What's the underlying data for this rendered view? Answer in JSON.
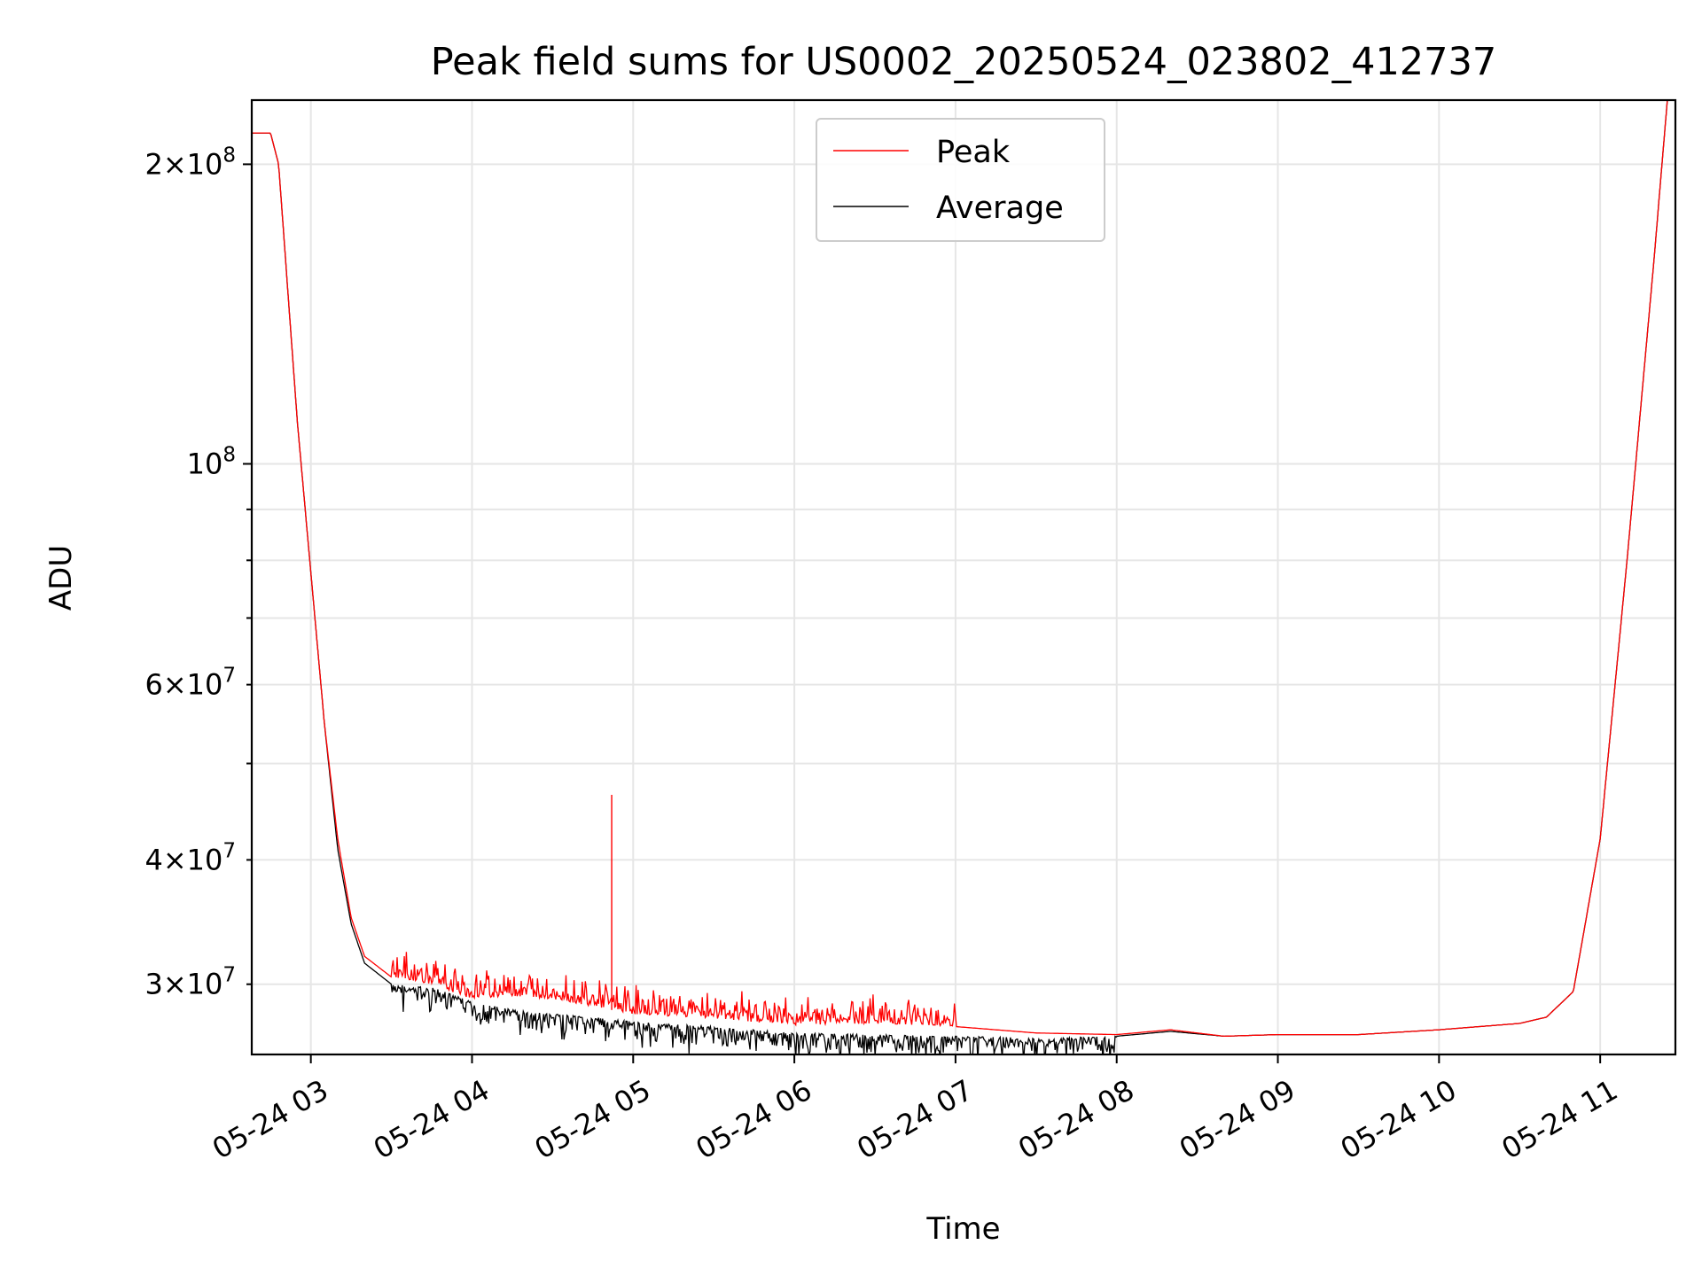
{
  "chart_data": {
    "type": "line",
    "title": "Peak field sums for US0002_20250524_023802_412737",
    "xlabel": "Time",
    "ylabel": "ADU",
    "y_scale": "log",
    "xlim": [
      "2025-05-24 02:38",
      "2025-05-24 11:28"
    ],
    "ylim": [
      25500000,
      232000000
    ],
    "grid": true,
    "legend_position": "upper center",
    "x_ticks": [
      "05-24 03",
      "05-24 04",
      "05-24 05",
      "05-24 06",
      "05-24 07",
      "05-24 08",
      "05-24 09",
      "05-24 10",
      "05-24 11"
    ],
    "y_ticks_major": [
      {
        "value": 100000000,
        "mantissa": "",
        "base": "10",
        "exp": "8"
      },
      {
        "value": 200000000,
        "mantissa": "2",
        "base": "10",
        "exp": "8"
      }
    ],
    "y_ticks_minor_labeled": [
      {
        "value": 30000000,
        "mantissa": "3",
        "base": "10",
        "exp": "7"
      },
      {
        "value": 40000000,
        "mantissa": "4",
        "base": "10",
        "exp": "7"
      },
      {
        "value": 60000000,
        "mantissa": "6",
        "base": "10",
        "exp": "7"
      }
    ],
    "series": [
      {
        "name": "Peak",
        "color": "#ff0000",
        "x": [
          "2025-05-24 02:38",
          "2025-05-24 02:45",
          "2025-05-24 02:48",
          "2025-05-24 02:55",
          "2025-05-24 03:05",
          "2025-05-24 03:10",
          "2025-05-24 03:15",
          "2025-05-24 03:20",
          "2025-05-24 03:30",
          "2025-05-24 03:45",
          "2025-05-24 04:00",
          "2025-05-24 04:15",
          "2025-05-24 04:30",
          "2025-05-24 04:45",
          "2025-05-24 05:00",
          "2025-05-24 05:30",
          "2025-05-24 06:00",
          "2025-05-24 06:30",
          "2025-05-24 07:00",
          "2025-05-24 07:30",
          "2025-05-24 08:00",
          "2025-05-24 08:20",
          "2025-05-24 08:40",
          "2025-05-24 09:00",
          "2025-05-24 09:30",
          "2025-05-24 10:00",
          "2025-05-24 10:30",
          "2025-05-24 10:40",
          "2025-05-24 10:50",
          "2025-05-24 11:00",
          "2025-05-24 11:10",
          "2025-05-24 11:20",
          "2025-05-24 11:25"
        ],
        "y": [
          215000000,
          215000000,
          200000000,
          110000000,
          55000000,
          42000000,
          35000000,
          32000000,
          30500000,
          30000000,
          29000000,
          29200000,
          29000000,
          28500000,
          28000000,
          27700000,
          27300000,
          27400000,
          27200000,
          26800000,
          26700000,
          27000000,
          26600000,
          26700000,
          26700000,
          27000000,
          27400000,
          27800000,
          29500000,
          42000000,
          80000000,
          160000000,
          232000000
        ]
      },
      {
        "name": "Average",
        "color": "#000000",
        "x": [
          "2025-05-24 02:38",
          "2025-05-24 02:45",
          "2025-05-24 02:48",
          "2025-05-24 02:55",
          "2025-05-24 03:05",
          "2025-05-24 03:10",
          "2025-05-24 03:15",
          "2025-05-24 03:20",
          "2025-05-24 03:30",
          "2025-05-24 03:45",
          "2025-05-24 04:00",
          "2025-05-24 04:15",
          "2025-05-24 04:30",
          "2025-05-24 04:45",
          "2025-05-24 05:00",
          "2025-05-24 05:30",
          "2025-05-24 06:00",
          "2025-05-24 06:30",
          "2025-05-24 07:00",
          "2025-05-24 07:30",
          "2025-05-24 08:00",
          "2025-05-24 08:20",
          "2025-05-24 08:40",
          "2025-05-24 09:00",
          "2025-05-24 09:30",
          "2025-05-24 10:00",
          "2025-05-24 10:30",
          "2025-05-24 10:40",
          "2025-05-24 10:50",
          "2025-05-24 11:00",
          "2025-05-24 11:10",
          "2025-05-24 11:20",
          "2025-05-24 11:25"
        ],
        "y": [
          215000000,
          215000000,
          200000000,
          110000000,
          55000000,
          41000000,
          34500000,
          31500000,
          30000000,
          29800000,
          28800000,
          28300000,
          28000000,
          27800000,
          27500000,
          27200000,
          26800000,
          26700000,
          26600000,
          26500000,
          26600000,
          26900000,
          26600000,
          26700000,
          26700000,
          27000000,
          27400000,
          27800000,
          29500000,
          42000000,
          80000000,
          160000000,
          232000000
        ]
      }
    ],
    "annotations": [
      {
        "series": "Peak",
        "type": "spike",
        "x": "2025-05-24 04:52",
        "y": 46500000
      },
      {
        "series": "Peak",
        "type": "noisy band",
        "x_range": [
          "2025-05-24 03:30",
          "2025-05-24 07:00"
        ],
        "y_range": [
          26500000,
          31500000
        ]
      },
      {
        "series": "Average",
        "type": "noisy band",
        "x_range": [
          "2025-05-24 03:30",
          "2025-05-24 08:00"
        ],
        "y_range": [
          25500000,
          30500000
        ]
      }
    ]
  }
}
